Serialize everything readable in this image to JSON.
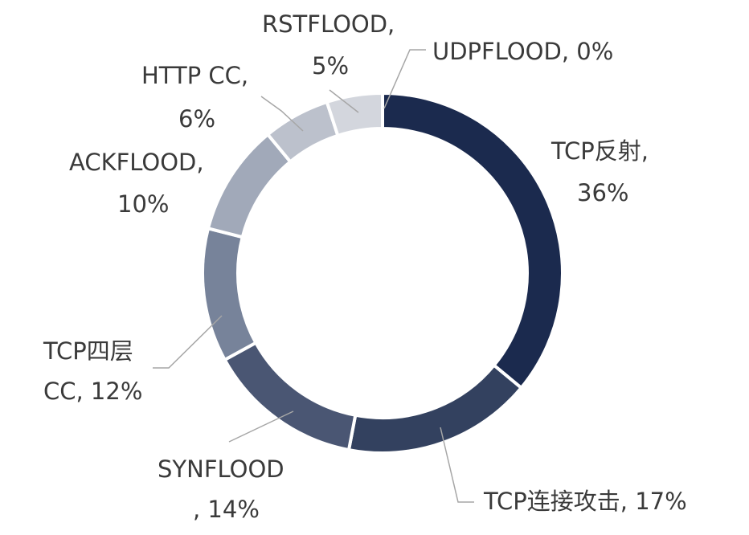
{
  "chart_data": {
    "type": "pie",
    "style": "donut",
    "slices": [
      {
        "label": "TCP反射,",
        "label_line2": "36%",
        "value": 36,
        "color": "#1b2a4e"
      },
      {
        "label": "TCP连接攻击, 17%",
        "label_line2": "",
        "value": 17,
        "color": "#33415f"
      },
      {
        "label": "SYNFLOOD",
        "label_line2": ", 14%",
        "value": 14,
        "color": "#4a5673"
      },
      {
        "label": "TCP四层",
        "label_line2": "CC, 12%",
        "value": 12,
        "color": "#77839a"
      },
      {
        "label": "ACKFLOOD,",
        "label_line2": "10%",
        "value": 10,
        "color": "#a1a9b9"
      },
      {
        "label": "HTTP CC,",
        "label_line2": "6%",
        "value": 6,
        "color": "#bcc1cc"
      },
      {
        "label": "RSTFLOOD,",
        "label_line2": "5%",
        "value": 5,
        "color": "#d3d6dd"
      },
      {
        "label": "UDPFLOOD, 0%",
        "label_line2": "",
        "value": 0,
        "color": "#e4e6ea"
      }
    ],
    "start_angle_deg": 0,
    "direction": "clockwise",
    "legend": "none",
    "data_labels": "outside with leader lines"
  }
}
